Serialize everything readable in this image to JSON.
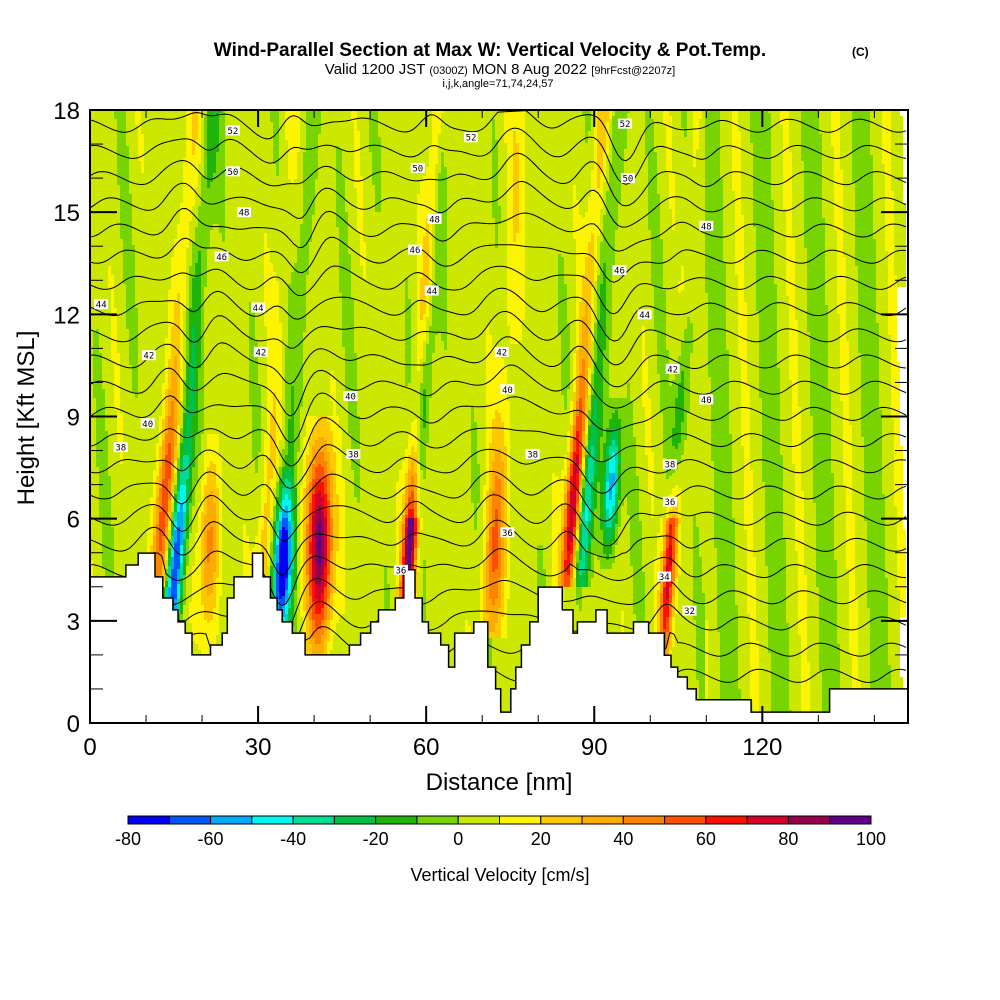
{
  "header": {
    "title": "Wind-Parallel Section at Max W: Vertical Velocity & Pot.Temp.",
    "copyright": "(C)",
    "valid_prefix": "Valid 1200 JST",
    "valid_utc": "(0300Z)",
    "valid_date": "MON 8 Aug 2022",
    "forecast": "[9hrFcst@2207z]",
    "indices": "i,j,k,angle=71,74,24,57"
  },
  "chart_data": {
    "type": "heatmap",
    "title": "Wind-Parallel Section at Max W: Vertical Velocity & Pot.Temp.",
    "xlabel": "Distance [nm]",
    "ylabel": "Height [Kft MSL]",
    "xlim": [
      0,
      146
    ],
    "ylim": [
      0,
      18
    ],
    "xticks": [
      0,
      30,
      60,
      90,
      120
    ],
    "xtick_labels": [
      "0",
      "30",
      "60",
      "90",
      "120"
    ],
    "x_minor_step": 10,
    "yticks": [
      0,
      3,
      6,
      9,
      12,
      15,
      18
    ],
    "ytick_labels": [
      "0",
      "3",
      "6",
      "9",
      "12",
      "15",
      "18"
    ],
    "y_minor_step": 1,
    "colorbar": {
      "title": "Vertical Velocity [cm/s]",
      "bounds": [
        -80,
        -70,
        -60,
        -50,
        -40,
        -30,
        -20,
        -10,
        0,
        10,
        20,
        30,
        40,
        50,
        60,
        70,
        80,
        90,
        100
      ],
      "tick_values": [
        -80,
        -60,
        -40,
        -20,
        0,
        20,
        40,
        60,
        80,
        100
      ],
      "tick_labels": [
        "-80",
        "-60",
        "-40",
        "-20",
        "0",
        "20",
        "40",
        "60",
        "80",
        "100"
      ],
      "colors": [
        "#0000f8",
        "#0058f8",
        "#00acf8",
        "#00f8f0",
        "#00dc94",
        "#00c048",
        "#20b408",
        "#78d400",
        "#cce800",
        "#fcf400",
        "#fcc800",
        "#fcac00",
        "#fc8400",
        "#fc5000",
        "#fc1000",
        "#d4002c",
        "#98004c",
        "#600088"
      ],
      "placement": "bottom"
    },
    "vertical_velocity_features": [
      {
        "name": "updraft",
        "x_nm": 12.5,
        "base_kft": 4.5,
        "top_kft": 18,
        "tilt_nm_per_kft": 0.45,
        "peak_cms": 60,
        "width_nm": 1.6
      },
      {
        "name": "downdraft",
        "x_nm": 14.5,
        "base_kft": 3.0,
        "top_kft": 18,
        "tilt_nm_per_kft": 0.5,
        "peak_cms": -75,
        "width_nm": 1.5
      },
      {
        "name": "updraft",
        "x_nm": 21.0,
        "base_kft": 2.5,
        "top_kft": 8,
        "tilt_nm_per_kft": 0.1,
        "peak_cms": 40,
        "width_nm": 1.8
      },
      {
        "name": "updraft",
        "x_nm": 30.5,
        "base_kft": 3.0,
        "top_kft": 18,
        "tilt_nm_per_kft": 0.35,
        "peak_cms": 30,
        "width_nm": 1.5
      },
      {
        "name": "downdraft",
        "x_nm": 33.5,
        "base_kft": 2.5,
        "top_kft": 18,
        "tilt_nm_per_kft": 0.4,
        "peak_cms": -40,
        "width_nm": 1.4
      },
      {
        "name": "downdraft",
        "x_nm": 34.5,
        "base_kft": 2.5,
        "top_kft": 7,
        "tilt_nm_per_kft": 0.0,
        "peak_cms": -55,
        "width_nm": 2.0
      },
      {
        "name": "updraft",
        "x_nm": 41.0,
        "base_kft": 2.0,
        "top_kft": 8.5,
        "tilt_nm_per_kft": 0.0,
        "peak_cms": 95,
        "width_nm": 2.2
      },
      {
        "name": "updraft",
        "x_nm": 56.5,
        "base_kft": 3.7,
        "top_kft": 18,
        "tilt_nm_per_kft": 0.4,
        "peak_cms": 95,
        "width_nm": 1.3
      },
      {
        "name": "downdraft",
        "x_nm": 58.0,
        "base_kft": 6.5,
        "top_kft": 18,
        "tilt_nm_per_kft": 0.45,
        "peak_cms": -50,
        "width_nm": 1.3
      },
      {
        "name": "updraft",
        "x_nm": 71.5,
        "base_kft": 3.0,
        "top_kft": 18,
        "tilt_nm_per_kft": 0.35,
        "peak_cms": 45,
        "width_nm": 2.0
      },
      {
        "name": "updraft",
        "x_nm": 85.5,
        "base_kft": 4.5,
        "top_kft": 18,
        "tilt_nm_per_kft": 0.45,
        "peak_cms": 90,
        "width_nm": 1.5
      },
      {
        "name": "downdraft",
        "x_nm": 87.5,
        "base_kft": 4.5,
        "top_kft": 18,
        "tilt_nm_per_kft": 0.5,
        "peak_cms": -55,
        "width_nm": 1.6
      },
      {
        "name": "downdraft",
        "x_nm": 92.5,
        "base_kft": 5.0,
        "top_kft": 9,
        "tilt_nm_per_kft": 0.3,
        "peak_cms": -60,
        "width_nm": 1.4
      },
      {
        "name": "updraft",
        "x_nm": 102.5,
        "base_kft": 2.5,
        "top_kft": 18,
        "tilt_nm_per_kft": 0.4,
        "peak_cms": 70,
        "width_nm": 1.2
      },
      {
        "name": "downdraft",
        "x_nm": 104.0,
        "base_kft": 6.5,
        "top_kft": 18,
        "tilt_nm_per_kft": 0.45,
        "peak_cms": -45,
        "width_nm": 1.2
      }
    ],
    "terrain_kft": [
      [
        0,
        4.29
      ],
      [
        6.4,
        4.29
      ],
      [
        6.4,
        4.64
      ],
      [
        8.6,
        4.64
      ],
      [
        8.6,
        4.99
      ],
      [
        11.6,
        4.99
      ],
      [
        11.6,
        4.29
      ],
      [
        13.0,
        4.29
      ],
      [
        13.0,
        3.67
      ],
      [
        14.8,
        3.67
      ],
      [
        14.8,
        3.32
      ],
      [
        15.7,
        3.32
      ],
      [
        15.7,
        2.97
      ],
      [
        17.0,
        2.97
      ],
      [
        17.0,
        2.64
      ],
      [
        18.2,
        2.64
      ],
      [
        18.2,
        2.0
      ],
      [
        21.5,
        2.0
      ],
      [
        21.5,
        2.29
      ],
      [
        23.6,
        2.29
      ],
      [
        23.6,
        2.64
      ],
      [
        24.5,
        2.64
      ],
      [
        24.5,
        3.67
      ],
      [
        25.7,
        3.67
      ],
      [
        25.7,
        4.29
      ],
      [
        29.0,
        4.29
      ],
      [
        29.0,
        4.99
      ],
      [
        30.9,
        4.99
      ],
      [
        30.9,
        4.29
      ],
      [
        32.2,
        4.29
      ],
      [
        32.2,
        3.67
      ],
      [
        33.4,
        3.67
      ],
      [
        33.4,
        3.32
      ],
      [
        34.3,
        3.32
      ],
      [
        34.3,
        2.97
      ],
      [
        36.1,
        2.97
      ],
      [
        36.1,
        2.64
      ],
      [
        38.4,
        2.64
      ],
      [
        38.4,
        2.0
      ],
      [
        46.3,
        2.0
      ],
      [
        46.3,
        2.29
      ],
      [
        48.3,
        2.29
      ],
      [
        48.3,
        2.64
      ],
      [
        50.1,
        2.64
      ],
      [
        50.1,
        2.97
      ],
      [
        51.5,
        2.97
      ],
      [
        51.5,
        3.32
      ],
      [
        54.5,
        3.32
      ],
      [
        54.5,
        3.67
      ],
      [
        56.0,
        3.67
      ],
      [
        56.0,
        4.5
      ],
      [
        58.0,
        4.5
      ],
      [
        58.0,
        3.67
      ],
      [
        59.3,
        3.67
      ],
      [
        59.3,
        2.97
      ],
      [
        60.4,
        2.97
      ],
      [
        60.4,
        2.64
      ],
      [
        62.6,
        2.64
      ],
      [
        62.6,
        2.29
      ],
      [
        64.0,
        2.29
      ],
      [
        64.0,
        1.64
      ],
      [
        65.1,
        1.64
      ],
      [
        65.1,
        2.64
      ],
      [
        68.5,
        2.64
      ],
      [
        68.5,
        2.97
      ],
      [
        71.0,
        2.97
      ],
      [
        71.0,
        1.64
      ],
      [
        72.4,
        1.64
      ],
      [
        72.4,
        1.0
      ],
      [
        73.3,
        1.0
      ],
      [
        73.3,
        0.32
      ],
      [
        75.1,
        0.32
      ],
      [
        75.1,
        1.0
      ],
      [
        76.0,
        1.0
      ],
      [
        76.0,
        1.64
      ],
      [
        77.0,
        1.64
      ],
      [
        77.0,
        2.29
      ],
      [
        78.5,
        2.29
      ],
      [
        78.5,
        2.97
      ],
      [
        80.0,
        2.97
      ],
      [
        80.0,
        3.99
      ],
      [
        84.3,
        3.99
      ],
      [
        84.3,
        3.32
      ],
      [
        86.2,
        3.32
      ],
      [
        86.2,
        2.64
      ],
      [
        87.0,
        2.64
      ],
      [
        87.0,
        2.97
      ],
      [
        90.3,
        2.97
      ],
      [
        90.3,
        3.32
      ],
      [
        92.3,
        3.32
      ],
      [
        92.3,
        2.64
      ],
      [
        95.3,
        2.64
      ],
      [
        95.3,
        2.64
      ],
      [
        97.0,
        2.64
      ],
      [
        97.0,
        2.97
      ],
      [
        99.7,
        2.97
      ],
      [
        99.7,
        2.64
      ],
      [
        102.5,
        2.64
      ],
      [
        102.5,
        1.99
      ],
      [
        103.7,
        1.99
      ],
      [
        103.7,
        1.64
      ],
      [
        104.9,
        1.64
      ],
      [
        104.9,
        1.35
      ],
      [
        106.6,
        1.35
      ],
      [
        106.6,
        1.0
      ],
      [
        108.2,
        1.0
      ],
      [
        108.2,
        0.68
      ],
      [
        118.0,
        0.68
      ],
      [
        118.0,
        0.32
      ],
      [
        132.0,
        0.32
      ],
      [
        132.0,
        1.0
      ],
      [
        146,
        1.0
      ]
    ],
    "theta_contours": {
      "levels": [
        32,
        33,
        34,
        35,
        36,
        37,
        38,
        39,
        40,
        41,
        42,
        43,
        44,
        45,
        46,
        47,
        48,
        49,
        50,
        51,
        52,
        53
      ],
      "labels": [
        {
          "text": "52",
          "x_nm": 25.5,
          "z_kft": 17.4
        },
        {
          "text": "50",
          "x_nm": 25.5,
          "z_kft": 16.2
        },
        {
          "text": "48",
          "x_nm": 27.5,
          "z_kft": 15.0
        },
        {
          "text": "46",
          "x_nm": 23.5,
          "z_kft": 13.7
        },
        {
          "text": "44",
          "x_nm": 2.0,
          "z_kft": 12.3
        },
        {
          "text": "44",
          "x_nm": 30.0,
          "z_kft": 12.2
        },
        {
          "text": "42",
          "x_nm": 10.5,
          "z_kft": 10.8
        },
        {
          "text": "42",
          "x_nm": 30.5,
          "z_kft": 10.9
        },
        {
          "text": "40",
          "x_nm": 10.3,
          "z_kft": 8.8
        },
        {
          "text": "40",
          "x_nm": 46.5,
          "z_kft": 9.6
        },
        {
          "text": "38",
          "x_nm": 5.5,
          "z_kft": 8.1
        },
        {
          "text": "38",
          "x_nm": 47.0,
          "z_kft": 7.9
        },
        {
          "text": "52",
          "x_nm": 68.0,
          "z_kft": 17.2
        },
        {
          "text": "50",
          "x_nm": 58.5,
          "z_kft": 16.3
        },
        {
          "text": "48",
          "x_nm": 61.5,
          "z_kft": 14.8
        },
        {
          "text": "46",
          "x_nm": 58.0,
          "z_kft": 13.9
        },
        {
          "text": "44",
          "x_nm": 61.0,
          "z_kft": 12.7
        },
        {
          "text": "42",
          "x_nm": 73.5,
          "z_kft": 10.9
        },
        {
          "text": "40",
          "x_nm": 74.5,
          "z_kft": 9.8
        },
        {
          "text": "38",
          "x_nm": 79.0,
          "z_kft": 7.9
        },
        {
          "text": "36",
          "x_nm": 74.5,
          "z_kft": 5.6
        },
        {
          "text": "36",
          "x_nm": 55.5,
          "z_kft": 4.5
        },
        {
          "text": "52",
          "x_nm": 95.5,
          "z_kft": 17.6
        },
        {
          "text": "50",
          "x_nm": 96.0,
          "z_kft": 16.0
        },
        {
          "text": "48",
          "x_nm": 110.0,
          "z_kft": 14.6
        },
        {
          "text": "46",
          "x_nm": 94.5,
          "z_kft": 13.3
        },
        {
          "text": "44",
          "x_nm": 99.0,
          "z_kft": 12.0
        },
        {
          "text": "42",
          "x_nm": 104.0,
          "z_kft": 10.4
        },
        {
          "text": "40",
          "x_nm": 110.0,
          "z_kft": 9.5
        },
        {
          "text": "38",
          "x_nm": 103.5,
          "z_kft": 7.6
        },
        {
          "text": "36",
          "x_nm": 103.5,
          "z_kft": 6.5
        },
        {
          "text": "34",
          "x_nm": 102.5,
          "z_kft": 4.3
        },
        {
          "text": "32",
          "x_nm": 107.0,
          "z_kft": 3.3
        }
      ]
    }
  }
}
